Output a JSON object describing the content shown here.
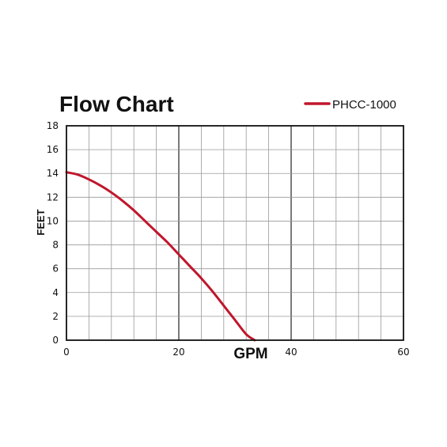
{
  "chart_data": {
    "type": "line",
    "title": "Flow Chart",
    "xlabel": "GPM",
    "ylabel": "FEET",
    "xlim": [
      0,
      60
    ],
    "ylim": [
      0,
      18
    ],
    "x_ticks": [
      0,
      20,
      40,
      60
    ],
    "y_ticks": [
      0,
      2,
      4,
      6,
      8,
      10,
      12,
      14,
      16,
      18
    ],
    "grid": true,
    "legend_position": "top-right",
    "series": [
      {
        "name": "PHCC-1000",
        "color": "#c0162c",
        "x": [
          0,
          2,
          4,
          6,
          8,
          10,
          12,
          14,
          16,
          18,
          20,
          22,
          24,
          26,
          28,
          30,
          32,
          33.5
        ],
        "y": [
          14.1,
          13.9,
          13.5,
          13.0,
          12.4,
          11.7,
          10.9,
          10.0,
          9.1,
          8.2,
          7.2,
          6.2,
          5.2,
          4.1,
          2.9,
          1.7,
          0.5,
          0
        ]
      }
    ]
  }
}
